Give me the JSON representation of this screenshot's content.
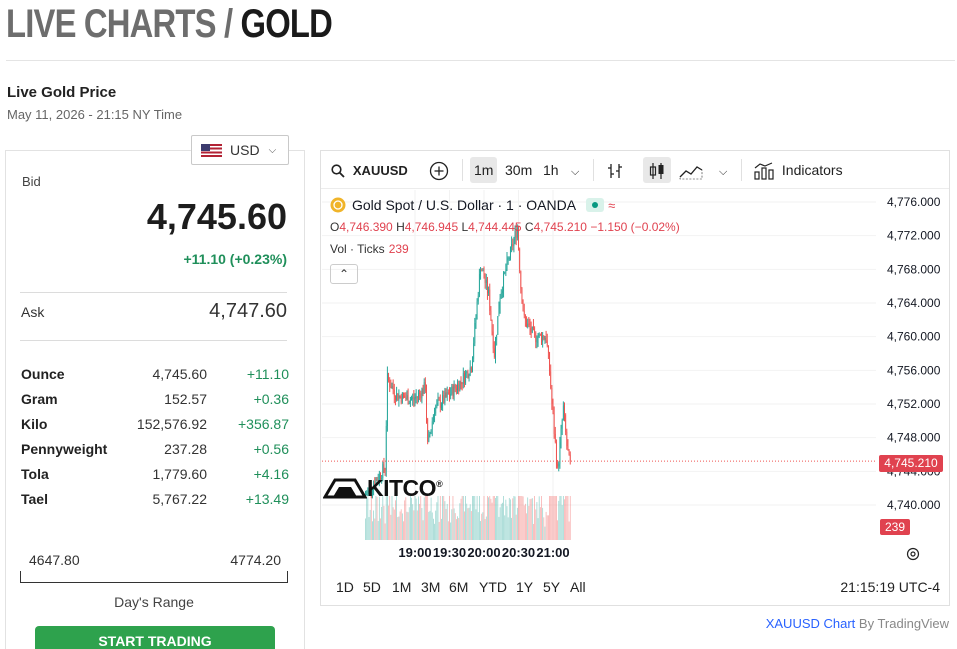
{
  "header": {
    "title_part1": "LIVE CHARTS / ",
    "title_part2": "GOLD"
  },
  "live": {
    "label": "Live Gold Price",
    "timestamp": "May 11, 2026 - 21:15 NY Time"
  },
  "currency": {
    "selected": "USD",
    "icon": "us-flag-icon"
  },
  "quote": {
    "bid_label": "Bid",
    "bid": "4,745.60",
    "change": "+11.10 (+0.23%)",
    "ask_label": "Ask",
    "ask": "4,747.60"
  },
  "units": [
    {
      "name": "Ounce",
      "price": "4,745.60",
      "change": "+11.10"
    },
    {
      "name": "Gram",
      "price": "152.57",
      "change": "+0.36"
    },
    {
      "name": "Kilo",
      "price": "152,576.92",
      "change": "+356.87"
    },
    {
      "name": "Pennyweight",
      "price": "237.28",
      "change": "+0.56"
    },
    {
      "name": "Tola",
      "price": "1,779.60",
      "change": "+4.16"
    },
    {
      "name": "Tael",
      "price": "5,767.22",
      "change": "+13.49"
    }
  ],
  "range": {
    "low": "4647.80",
    "high": "4774.20",
    "label": "Day's Range"
  },
  "trade_button": "START TRADING",
  "toolbar": {
    "symbol": "XAUUSD",
    "intervals": [
      "1m",
      "30m",
      "1h"
    ],
    "selected_interval": "1m",
    "indicators": "Indicators"
  },
  "legend": {
    "title": "Gold Spot / U.S. Dollar · 1 · OANDA",
    "o_key": "O",
    "o": "4,746.390",
    "h_key": "H",
    "h": "4,746.945",
    "l_key": "L",
    "l": "4,744.445",
    "c_key": "C",
    "c": "4,745.210",
    "chg": "−1.150 (−0.02%)",
    "vol_label": "Vol · Ticks",
    "vol": "239"
  },
  "watermark": "KITCO",
  "last_price": "4,745.210",
  "last_volume": "239",
  "bottom_ranges": [
    "1D",
    "5D",
    "1M",
    "3M",
    "6M",
    "YTD",
    "1Y",
    "5Y",
    "All"
  ],
  "clock": "21:15:19 UTC-4",
  "attribution": {
    "link": "XAUUSD Chart",
    "by": " By TradingView"
  },
  "colors": {
    "up": "#26a69a",
    "down": "#ef5350",
    "positive_text": "#1f8f5a",
    "badge": "#e0424f",
    "trade_button": "#2ea24d"
  },
  "chart_data": {
    "type": "candlestick",
    "symbol": "XAUUSD",
    "interval": "1m",
    "x_ticks": [
      "19:00",
      "19:30",
      "20:00",
      "20:30",
      "21:00"
    ],
    "y_ticks": [
      "4,740.000",
      "4,744.000",
      "4,748.000",
      "4,752.000",
      "4,756.000",
      "4,760.000",
      "4,764.000",
      "4,768.000",
      "4,772.000",
      "4,776.000"
    ],
    "ylim": [
      4738,
      4778
    ],
    "close_path": [
      {
        "t": "18:17",
        "v": 4741.0
      },
      {
        "t": "18:35",
        "v": 4744.5
      },
      {
        "t": "18:37",
        "v": 4755.0
      },
      {
        "t": "18:45",
        "v": 4753.0
      },
      {
        "t": "19:00",
        "v": 4752.5
      },
      {
        "t": "19:10",
        "v": 4754.0
      },
      {
        "t": "19:12",
        "v": 4747.0
      },
      {
        "t": "19:18",
        "v": 4751.5
      },
      {
        "t": "19:30",
        "v": 4753.0
      },
      {
        "t": "19:40",
        "v": 4754.5
      },
      {
        "t": "19:50",
        "v": 4756.5
      },
      {
        "t": "19:58",
        "v": 4768.5
      },
      {
        "t": "20:05",
        "v": 4765.0
      },
      {
        "t": "20:10",
        "v": 4758.0
      },
      {
        "t": "20:15",
        "v": 4765.0
      },
      {
        "t": "20:20",
        "v": 4768.0
      },
      {
        "t": "20:30",
        "v": 4773.0
      },
      {
        "t": "20:33",
        "v": 4766.0
      },
      {
        "t": "20:36",
        "v": 4762.0
      },
      {
        "t": "20:45",
        "v": 4760.0
      },
      {
        "t": "20:55",
        "v": 4760.0
      },
      {
        "t": "20:58",
        "v": 4756.0
      },
      {
        "t": "21:00",
        "v": 4752.0
      },
      {
        "t": "21:05",
        "v": 4744.0
      },
      {
        "t": "21:10",
        "v": 4751.5
      },
      {
        "t": "21:13",
        "v": 4747.0
      },
      {
        "t": "21:15",
        "v": 4745.21
      }
    ]
  }
}
